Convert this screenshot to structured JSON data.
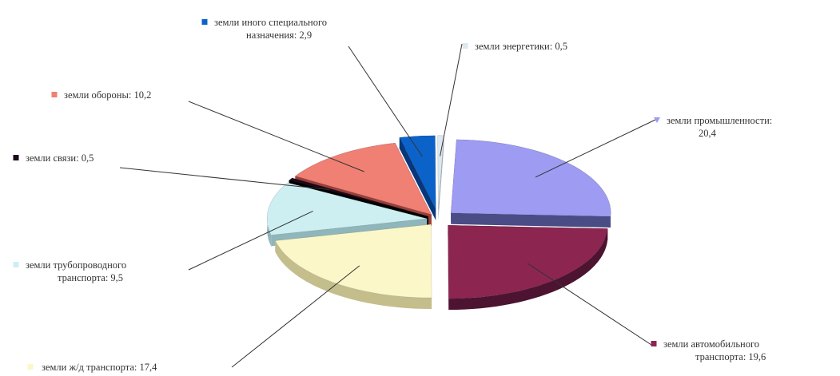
{
  "chart_data": {
    "type": "pie",
    "title": "",
    "slices": [
      {
        "label_lines": [
          "земли промышленности:",
          "20,4"
        ],
        "value": 20.4,
        "color": "#9d9bf2",
        "shade": "#4a4c86",
        "mark": "triangle"
      },
      {
        "label_lines": [
          "земли автомобильного",
          "транспорта: 19,6"
        ],
        "value": 19.6,
        "color": "#8c2650",
        "shade": "#4c1430",
        "mark": "square"
      },
      {
        "label_lines": [
          "земли ж/д транспорта: 17,4"
        ],
        "value": 17.4,
        "color": "#fbf7c8",
        "shade": "#c4bd8c",
        "mark": "square"
      },
      {
        "label_lines": [
          "земли трубопроводного",
          "транспорта: 9,5"
        ],
        "value": 9.5,
        "color": "#cdeff2",
        "shade": "#8fb6ba",
        "mark": "square"
      },
      {
        "label_lines": [
          "земли связи: 0,5"
        ],
        "value": 0.5,
        "color": "#1a0a1a",
        "shade": "#000000",
        "mark": "square"
      },
      {
        "label_lines": [
          "земли обороны: 10,2"
        ],
        "value": 10.2,
        "color": "#f07f74",
        "shade": "#9a3f38",
        "mark": "square"
      },
      {
        "label_lines": [
          "земли иного специального",
          "назначения: 2,9"
        ],
        "value": 2.9,
        "color": "#0b63c9",
        "shade": "#07377a",
        "mark": "square"
      },
      {
        "label_lines": [
          "земли энергетики: 0,5"
        ],
        "value": 0.5,
        "color": "#dde7ee",
        "shade": "#a8b2b8",
        "mark": "square"
      }
    ]
  }
}
